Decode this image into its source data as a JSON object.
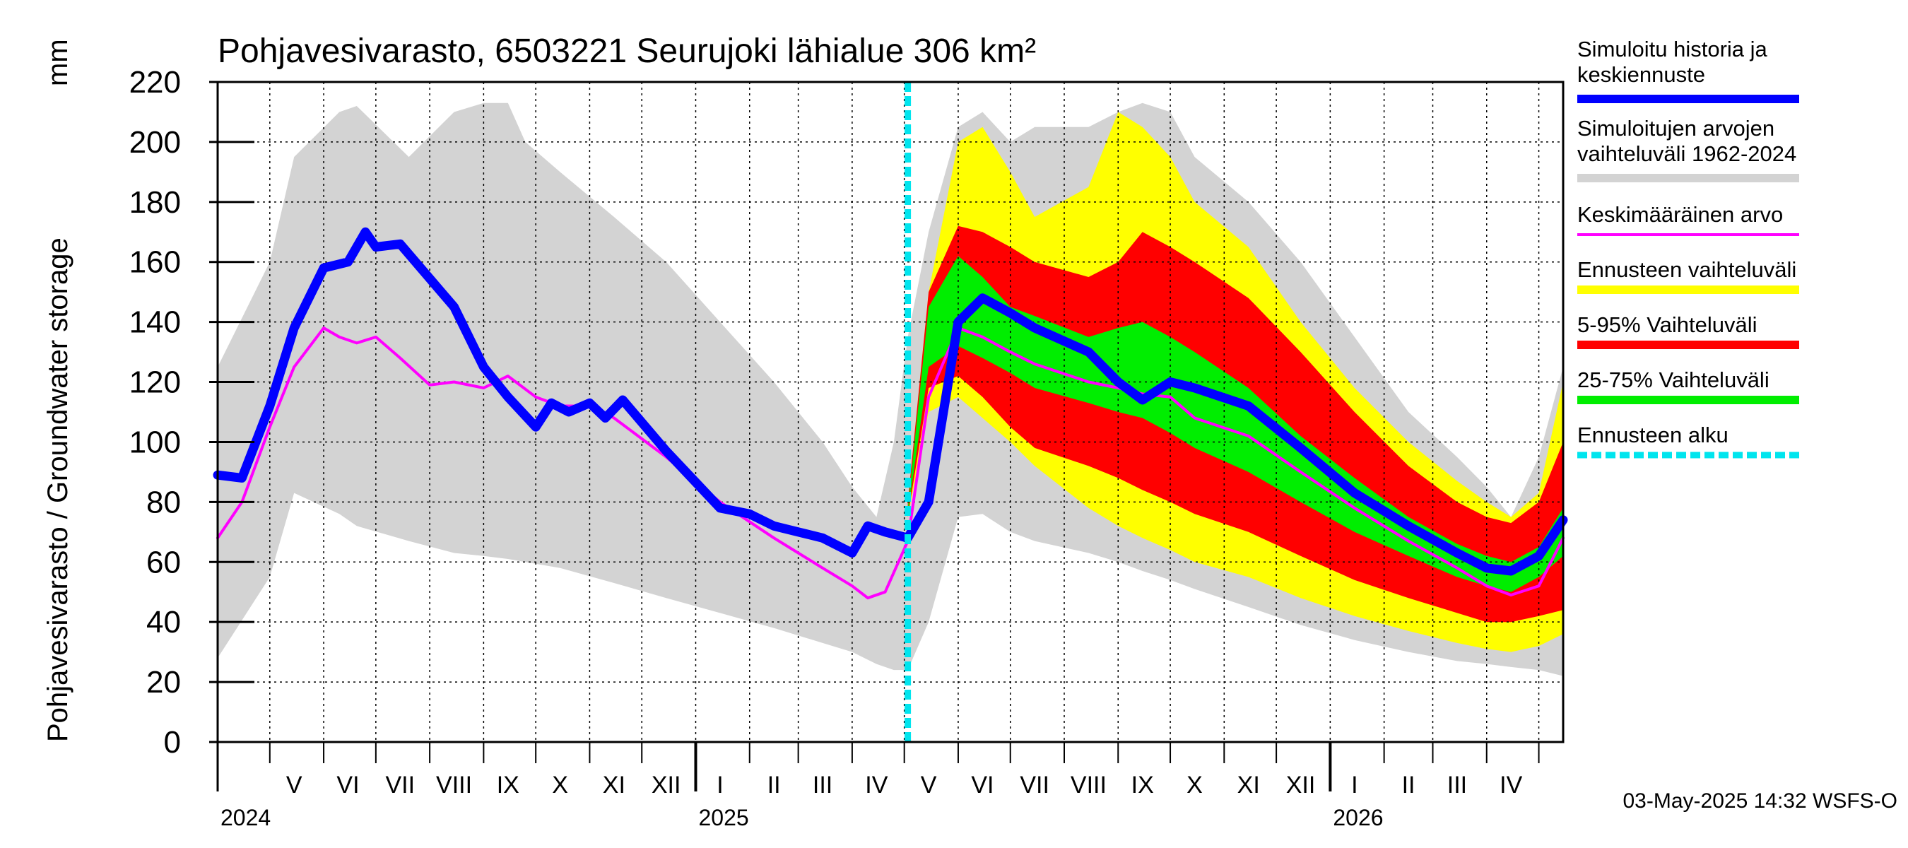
{
  "chart_data": {
    "type": "area",
    "title": "Pohjavesivarasto, 6503221 Seurujoki lähialue 306 km²",
    "ylabel": "Pohjavesivarasto / Groundwater storage",
    "yunit": "mm",
    "ylim": [
      0,
      220
    ],
    "yticks": [
      0,
      20,
      40,
      60,
      80,
      100,
      120,
      140,
      160,
      180,
      200,
      220
    ],
    "x_range": [
      "2024-04-01",
      "2026-05-15"
    ],
    "forecast_start": "2025-05-03",
    "grid": true,
    "legend_position": "right",
    "months": [
      {
        "label": "V",
        "date": "2024-05-15"
      },
      {
        "label": "VI",
        "date": "2024-06-15"
      },
      {
        "label": "VII",
        "date": "2024-07-15"
      },
      {
        "label": "VIII",
        "date": "2024-08-15"
      },
      {
        "label": "IX",
        "date": "2024-09-15"
      },
      {
        "label": "X",
        "date": "2024-10-15"
      },
      {
        "label": "XI",
        "date": "2024-11-15"
      },
      {
        "label": "XII",
        "date": "2024-12-15"
      },
      {
        "label": "I",
        "date": "2025-01-15"
      },
      {
        "label": "II",
        "date": "2025-02-15"
      },
      {
        "label": "III",
        "date": "2025-03-15"
      },
      {
        "label": "IV",
        "date": "2025-04-15"
      },
      {
        "label": "V",
        "date": "2025-05-15"
      },
      {
        "label": "VI",
        "date": "2025-06-15"
      },
      {
        "label": "VII",
        "date": "2025-07-15"
      },
      {
        "label": "VIII",
        "date": "2025-08-15"
      },
      {
        "label": "IX",
        "date": "2025-09-15"
      },
      {
        "label": "X",
        "date": "2025-10-15"
      },
      {
        "label": "XI",
        "date": "2025-11-15"
      },
      {
        "label": "XII",
        "date": "2025-12-15"
      },
      {
        "label": "I",
        "date": "2026-01-15"
      },
      {
        "label": "II",
        "date": "2026-02-15"
      },
      {
        "label": "III",
        "date": "2026-03-15"
      },
      {
        "label": "IV",
        "date": "2026-04-15"
      }
    ],
    "years": [
      {
        "label": "2024",
        "date": "2024-04-01"
      },
      {
        "label": "2025",
        "date": "2025-01-01"
      },
      {
        "label": "2026",
        "date": "2026-01-01"
      }
    ],
    "series": [
      {
        "name": "Simuloitujen arvojen vaihteluväli 1962-2024",
        "kind": "band",
        "color": "#d3d3d3",
        "x": [
          "2024-04-01",
          "2024-05-01",
          "2024-05-15",
          "2024-06-10",
          "2024-06-20",
          "2024-07-20",
          "2024-08-15",
          "2024-09-01",
          "2024-09-15",
          "2024-09-25",
          "2024-10-15",
          "2024-11-15",
          "2024-12-15",
          "2025-01-15",
          "2025-02-15",
          "2025-03-15",
          "2025-04-01",
          "2025-04-15",
          "2025-04-25",
          "2025-05-03",
          "2025-05-15",
          "2025-06-01",
          "2025-06-15",
          "2025-07-01",
          "2025-07-15",
          "2025-08-15",
          "2025-09-01",
          "2025-09-15",
          "2025-10-01",
          "2025-10-15",
          "2025-11-15",
          "2025-12-15",
          "2026-01-15",
          "2026-02-15",
          "2026-03-15",
          "2026-04-01",
          "2026-04-15",
          "2026-05-01",
          "2026-05-15"
        ],
        "upper": [
          125,
          160,
          195,
          210,
          212,
          195,
          210,
          213,
          213,
          200,
          190,
          175,
          160,
          140,
          120,
          100,
          85,
          75,
          100,
          135,
          170,
          205,
          210,
          200,
          205,
          205,
          210,
          213,
          210,
          195,
          180,
          160,
          135,
          110,
          95,
          85,
          75,
          95,
          125
        ],
        "lower": [
          28,
          55,
          83,
          76,
          72,
          67,
          63,
          62,
          61,
          60,
          58,
          53,
          48,
          43,
          38,
          33,
          30,
          26,
          24,
          24,
          40,
          75,
          76,
          70,
          67,
          63,
          60,
          57,
          54,
          51,
          45,
          39,
          34,
          30,
          27,
          26,
          25,
          24,
          22
        ]
      },
      {
        "name": "Ennusteen vaihteluväli",
        "kind": "band",
        "color": "#ffff00",
        "x": [
          "2025-05-03",
          "2025-05-15",
          "2025-06-01",
          "2025-06-15",
          "2025-07-01",
          "2025-07-15",
          "2025-08-15",
          "2025-09-01",
          "2025-09-15",
          "2025-10-01",
          "2025-10-15",
          "2025-11-15",
          "2025-12-15",
          "2026-01-15",
          "2026-02-15",
          "2026-03-15",
          "2026-04-01",
          "2026-04-15",
          "2026-05-01",
          "2026-05-15"
        ],
        "upper": [
          80,
          150,
          200,
          205,
          190,
          175,
          185,
          210,
          205,
          195,
          180,
          165,
          140,
          118,
          100,
          87,
          80,
          75,
          83,
          120
        ],
        "lower": [
          75,
          110,
          115,
          108,
          100,
          92,
          78,
          72,
          68,
          64,
          60,
          55,
          48,
          42,
          37,
          33,
          31,
          30,
          32,
          36
        ]
      },
      {
        "name": "5-95% Vaihteluväli",
        "kind": "band",
        "color": "#ff0000",
        "x": [
          "2025-05-03",
          "2025-05-15",
          "2025-06-01",
          "2025-06-15",
          "2025-07-01",
          "2025-07-15",
          "2025-08-15",
          "2025-09-01",
          "2025-09-15",
          "2025-10-01",
          "2025-10-15",
          "2025-11-15",
          "2025-12-15",
          "2026-01-15",
          "2026-02-15",
          "2026-03-15",
          "2026-04-01",
          "2026-04-15",
          "2026-05-01",
          "2026-05-15"
        ],
        "upper": [
          80,
          150,
          172,
          170,
          165,
          160,
          155,
          160,
          170,
          165,
          160,
          148,
          130,
          110,
          92,
          80,
          75,
          73,
          80,
          100
        ],
        "lower": [
          75,
          118,
          122,
          115,
          105,
          98,
          92,
          88,
          84,
          80,
          76,
          70,
          62,
          54,
          48,
          43,
          40,
          40,
          42,
          44
        ]
      },
      {
        "name": "25-75% Vaihteluväli",
        "kind": "band",
        "color": "#00ee00",
        "x": [
          "2025-05-03",
          "2025-05-15",
          "2025-06-01",
          "2025-06-15",
          "2025-07-01",
          "2025-07-15",
          "2025-08-15",
          "2025-09-01",
          "2025-09-15",
          "2025-10-01",
          "2025-10-15",
          "2025-11-15",
          "2025-12-15",
          "2026-01-15",
          "2026-02-15",
          "2026-03-15",
          "2026-04-01",
          "2026-04-15",
          "2026-05-01",
          "2026-05-15"
        ],
        "upper": [
          78,
          145,
          162,
          155,
          145,
          142,
          135,
          138,
          140,
          135,
          130,
          118,
          102,
          88,
          75,
          66,
          62,
          60,
          65,
          78
        ],
        "lower": [
          76,
          125,
          132,
          128,
          123,
          118,
          113,
          110,
          108,
          103,
          98,
          90,
          80,
          70,
          62,
          55,
          52,
          50,
          55,
          62
        ]
      },
      {
        "name": "Keskimääräinen arvo",
        "kind": "line",
        "color": "#ff00ff",
        "x": [
          "2024-04-01",
          "2024-04-15",
          "2024-05-01",
          "2024-05-15",
          "2024-06-01",
          "2024-06-10",
          "2024-06-20",
          "2024-07-01",
          "2024-07-15",
          "2024-08-01",
          "2024-08-15",
          "2024-09-01",
          "2024-09-15",
          "2024-10-01",
          "2024-10-15",
          "2024-11-01",
          "2024-11-15",
          "2024-12-15",
          "2025-01-15",
          "2025-02-15",
          "2025-03-15",
          "2025-04-01",
          "2025-04-10",
          "2025-04-20",
          "2025-05-03",
          "2025-05-15",
          "2025-06-01",
          "2025-06-15",
          "2025-07-01",
          "2025-07-15",
          "2025-08-15",
          "2025-09-01",
          "2025-09-15",
          "2025-10-01",
          "2025-10-15",
          "2025-11-15",
          "2025-12-15",
          "2026-01-15",
          "2026-02-15",
          "2026-03-15",
          "2026-04-01",
          "2026-04-15",
          "2026-05-01",
          "2026-05-15"
        ],
        "y": [
          68,
          80,
          105,
          125,
          138,
          135,
          133,
          135,
          128,
          119,
          120,
          118,
          122,
          115,
          112,
          112,
          108,
          95,
          80,
          68,
          58,
          52,
          48,
          50,
          67,
          115,
          138,
          135,
          130,
          126,
          120,
          118,
          116,
          115,
          108,
          102,
          90,
          78,
          67,
          58,
          52,
          49,
          52,
          68
        ]
      },
      {
        "name": "Simuloitu historia ja keskiennuste",
        "kind": "line",
        "color": "#0000ff",
        "x": [
          "2024-04-01",
          "2024-04-15",
          "2024-05-01",
          "2024-05-15",
          "2024-06-01",
          "2024-06-15",
          "2024-06-25",
          "2024-07-01",
          "2024-07-15",
          "2024-08-15",
          "2024-09-01",
          "2024-09-15",
          "2024-10-01",
          "2024-10-10",
          "2024-10-20",
          "2024-11-01",
          "2024-11-10",
          "2024-11-20",
          "2024-12-15",
          "2025-01-15",
          "2025-02-01",
          "2025-02-15",
          "2025-03-01",
          "2025-03-15",
          "2025-04-01",
          "2025-04-10",
          "2025-04-20",
          "2025-05-03",
          "2025-05-15",
          "2025-06-01",
          "2025-06-15",
          "2025-07-01",
          "2025-07-15",
          "2025-08-15",
          "2025-09-01",
          "2025-09-15",
          "2025-10-01",
          "2025-10-15",
          "2025-11-15",
          "2025-12-15",
          "2026-01-15",
          "2026-02-15",
          "2026-03-15",
          "2026-04-01",
          "2026-04-15",
          "2026-05-01",
          "2026-05-15"
        ],
        "y": [
          89,
          88,
          112,
          138,
          158,
          160,
          170,
          165,
          166,
          145,
          125,
          115,
          105,
          113,
          110,
          113,
          108,
          114,
          97,
          78,
          76,
          72,
          70,
          68,
          63,
          72,
          70,
          68,
          80,
          140,
          148,
          143,
          138,
          130,
          120,
          114,
          120,
          118,
          112,
          98,
          83,
          72,
          63,
          58,
          57,
          62,
          74
        ]
      }
    ],
    "legend": [
      {
        "label": "Simuloitu historia ja keskiennuste",
        "color": "#0000ff"
      },
      {
        "label": "Simuloitujen arvojen vaihteluväli 1962-2024",
        "color": "#d3d3d3"
      },
      {
        "label": "Keskimääräinen arvo",
        "color": "#ff00ff"
      },
      {
        "label": "Ennusteen vaihteluväli",
        "color": "#ffff00"
      },
      {
        "label": "5-95% Vaihteluväli",
        "color": "#ff0000"
      },
      {
        "label": "25-75% Vaihteluväli",
        "color": "#00ee00"
      },
      {
        "label": "Ennusteen alku",
        "color": "#00e5ee"
      }
    ],
    "timestamp": "03-May-2025 14:32 WSFS-O"
  }
}
